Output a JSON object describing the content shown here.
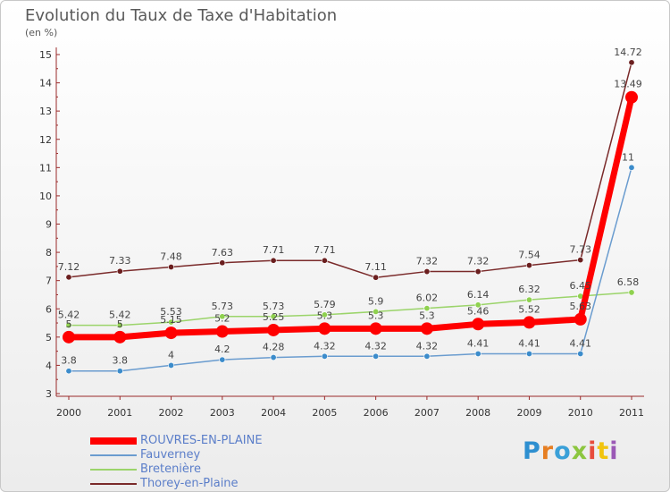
{
  "header": {
    "title": "Evolution du Taux de Taxe d'Habitation",
    "unit": "(en %)"
  },
  "logo": {
    "text": "Proxiti",
    "letter_colors": [
      "#2e8fd0",
      "#e67e22",
      "#3aa0d8",
      "#8cc63f",
      "#e74c3c",
      "#f1c40f",
      "#9b59b6"
    ]
  },
  "chart_data": {
    "type": "line",
    "title": "Evolution du Taux de Taxe d'Habitation",
    "ylabel": "(en %)",
    "xlabel": "",
    "x": [
      "2000",
      "2001",
      "2002",
      "2003",
      "2004",
      "2005",
      "2006",
      "2007",
      "2008",
      "2009",
      "2010",
      "2011"
    ],
    "ylim": [
      3,
      15
    ],
    "yticks": [
      3,
      4,
      5,
      6,
      7,
      8,
      9,
      10,
      11,
      12,
      13,
      14,
      15
    ],
    "grid": false,
    "legend_position": "bottom-left",
    "series": [
      {
        "name": "ROUVRES-EN-PLAINE",
        "color": "#ff0000",
        "values": [
          5,
          5,
          5.15,
          5.2,
          5.25,
          5.3,
          5.3,
          5.3,
          5.46,
          5.52,
          5.63,
          13.49
        ],
        "labels": [
          "5",
          "5",
          "5.15",
          "5.2",
          "5.25",
          "5.3",
          "5.3",
          "5.3",
          "5.46",
          "5.52",
          "5.63",
          "13.49"
        ]
      },
      {
        "name": "Fauverney",
        "color": "#6a9ccf",
        "values": [
          3.8,
          3.8,
          4,
          4.2,
          4.28,
          4.32,
          4.32,
          4.32,
          4.41,
          4.41,
          4.41,
          11
        ],
        "labels": [
          "3.8",
          "3.8",
          "4",
          "4.2",
          "4.28",
          "4.32",
          "4.32",
          "4.32",
          "4.41",
          "4.41",
          "4.41",
          "11"
        ]
      },
      {
        "name": "Bretenière",
        "color": "#9bd46a",
        "values": [
          5.42,
          5.42,
          5.53,
          5.73,
          5.73,
          5.79,
          5.9,
          6.02,
          6.14,
          6.32,
          6.45,
          6.58
        ],
        "labels": [
          "5.42",
          "5.42",
          "5.53",
          "5.73",
          "5.73",
          "5.79",
          "5.9",
          "6.02",
          "6.14",
          "6.32",
          "6.45",
          "6.58"
        ]
      },
      {
        "name": "Thorey-en-Plaine",
        "color": "#7a2a2a",
        "values": [
          7.12,
          7.33,
          7.48,
          7.63,
          7.71,
          7.71,
          7.11,
          7.32,
          7.32,
          7.54,
          7.73,
          14.72
        ],
        "labels": [
          "7.12",
          "7.33",
          "7.48",
          "7.63",
          "7.71",
          "7.71",
          "7.11",
          "7.32",
          "7.32",
          "7.54",
          "7.73",
          "14.72"
        ]
      }
    ]
  }
}
